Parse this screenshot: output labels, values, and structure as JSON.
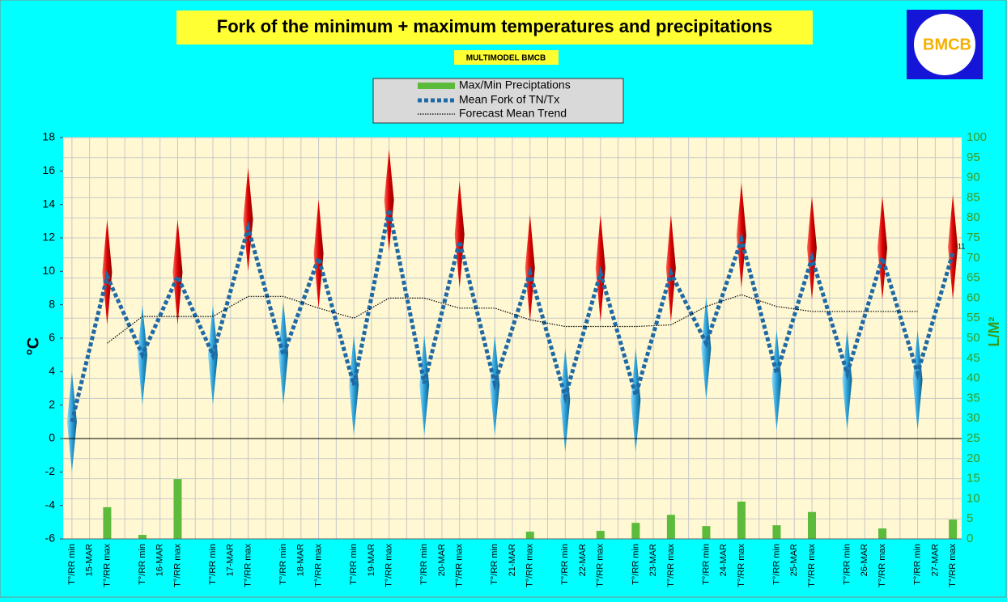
{
  "chart_data": {
    "type": "line",
    "title": "Fork of the minimum + maximum temperatures and precipitations",
    "subtitle": "MULTIMODEL BMCB",
    "logo_text": "BMCB",
    "y_label": "°C",
    "y2_label": "L/M²",
    "annotation": "11",
    "categories": [
      "T°/RR min",
      "15-MAR",
      "T°/RR max",
      null,
      "T°/RR min",
      "16-MAR",
      "T°/RR max",
      null,
      "T°/RR min",
      "17-MAR",
      "T°/RR max",
      null,
      "T°/RR min",
      "18-MAR",
      "T°/RR max",
      null,
      "T°/RR min",
      "19-MAR",
      "T°/RR max",
      null,
      "T°/RR min",
      "20-MAR",
      "T°/RR max",
      null,
      "T°/RR min",
      "21-MAR",
      "T°/RR max",
      null,
      "T°/RR min",
      "22-MAR",
      "T°/RR max",
      null,
      "T°/RR min",
      "23-MAR",
      "T°/RR max",
      null,
      "T°/RR min",
      "24-MAR",
      "T°/RR max",
      null,
      "T°/RR min",
      "25-MAR",
      "T°/RR max",
      null,
      "T°/RR min",
      "26-MAR",
      "T°/RR max",
      null,
      "T°/RR min",
      "27-MAR",
      "T°/RR max"
    ],
    "ylim": [
      -6,
      18
    ],
    "yticks": [
      -6,
      -4,
      -2,
      0,
      2,
      4,
      6,
      8,
      10,
      12,
      14,
      16,
      18
    ],
    "y2lim": [
      0,
      100
    ],
    "y2ticks": [
      0,
      5,
      10,
      15,
      20,
      25,
      30,
      35,
      40,
      45,
      50,
      55,
      60,
      65,
      70,
      75,
      80,
      85,
      90,
      95,
      100
    ],
    "grid": true,
    "series": [
      {
        "name": "Max/Min Preciptations",
        "type": "bar",
        "axis": "y2",
        "color": "#5dbb3c",
        "values": [
          null,
          null,
          7.9,
          null,
          1.0,
          null,
          14.9,
          null,
          null,
          null,
          null,
          null,
          null,
          null,
          null,
          null,
          null,
          null,
          null,
          null,
          null,
          null,
          null,
          null,
          null,
          null,
          1.8,
          null,
          null,
          null,
          2.0,
          null,
          4.0,
          null,
          6.0,
          null,
          3.2,
          null,
          9.3,
          null,
          3.4,
          null,
          6.7,
          null,
          null,
          null,
          2.6,
          null,
          null,
          null,
          4.8
        ]
      },
      {
        "name": "Mean Fork of TN/Tx",
        "type": "line",
        "color": "#1f6aa5",
        "x": [
          0,
          2,
          4,
          6,
          8,
          10,
          12,
          14,
          16,
          18,
          20,
          22,
          24,
          26,
          28,
          30,
          32,
          34,
          36,
          38,
          40,
          42,
          44,
          46,
          48,
          50
        ],
        "values": [
          1.0,
          9.7,
          5.0,
          9.7,
          5.0,
          12.6,
          5.0,
          10.8,
          3.2,
          13.7,
          3.3,
          11.8,
          3.3,
          9.9,
          2.5,
          9.9,
          2.6,
          9.9,
          5.7,
          11.9,
          3.9,
          10.8,
          3.9,
          10.8,
          3.9,
          11.1
        ]
      },
      {
        "name": "Forecast Mean Trend",
        "type": "line",
        "color": "#000000",
        "x": [
          2,
          4,
          6,
          8,
          10,
          12,
          14,
          16,
          18,
          20,
          22,
          24,
          26,
          28,
          30,
          32,
          34,
          36,
          38,
          40,
          42,
          44,
          46,
          48
        ],
        "values": [
          5.7,
          7.3,
          7.3,
          7.3,
          8.5,
          8.5,
          7.8,
          7.2,
          8.4,
          8.4,
          7.8,
          7.8,
          7.1,
          6.7,
          6.7,
          6.7,
          6.8,
          7.9,
          8.6,
          7.9,
          7.6,
          7.6,
          7.6,
          7.6
        ]
      }
    ],
    "ranges": {
      "tn": {
        "color": "#2a9fd6",
        "x": [
          0,
          4,
          8,
          12,
          16,
          20,
          24,
          28,
          32,
          36,
          40,
          44,
          48
        ],
        "low": [
          -2.0,
          2.0,
          2.0,
          2.0,
          0.2,
          0.2,
          0.2,
          -0.8,
          -0.8,
          2.3,
          0.5,
          0.5,
          0.5
        ],
        "high": [
          4.0,
          8.0,
          8.0,
          8.2,
          6.2,
          6.2,
          6.2,
          5.4,
          5.4,
          8.5,
          6.5,
          6.5,
          6.5
        ]
      },
      "tx": {
        "color": "#e02020",
        "x": [
          2,
          6,
          10,
          14,
          18,
          22,
          26,
          30,
          34,
          38,
          42,
          46,
          50
        ],
        "low": [
          6.8,
          6.8,
          10.0,
          7.8,
          11.2,
          9.0,
          7.0,
          7.0,
          7.0,
          9.0,
          8.3,
          8.3,
          8.3
        ],
        "high": [
          13.1,
          13.1,
          16.2,
          14.3,
          17.3,
          15.4,
          13.4,
          13.4,
          13.4,
          15.3,
          14.5,
          14.5,
          14.6
        ]
      }
    }
  }
}
